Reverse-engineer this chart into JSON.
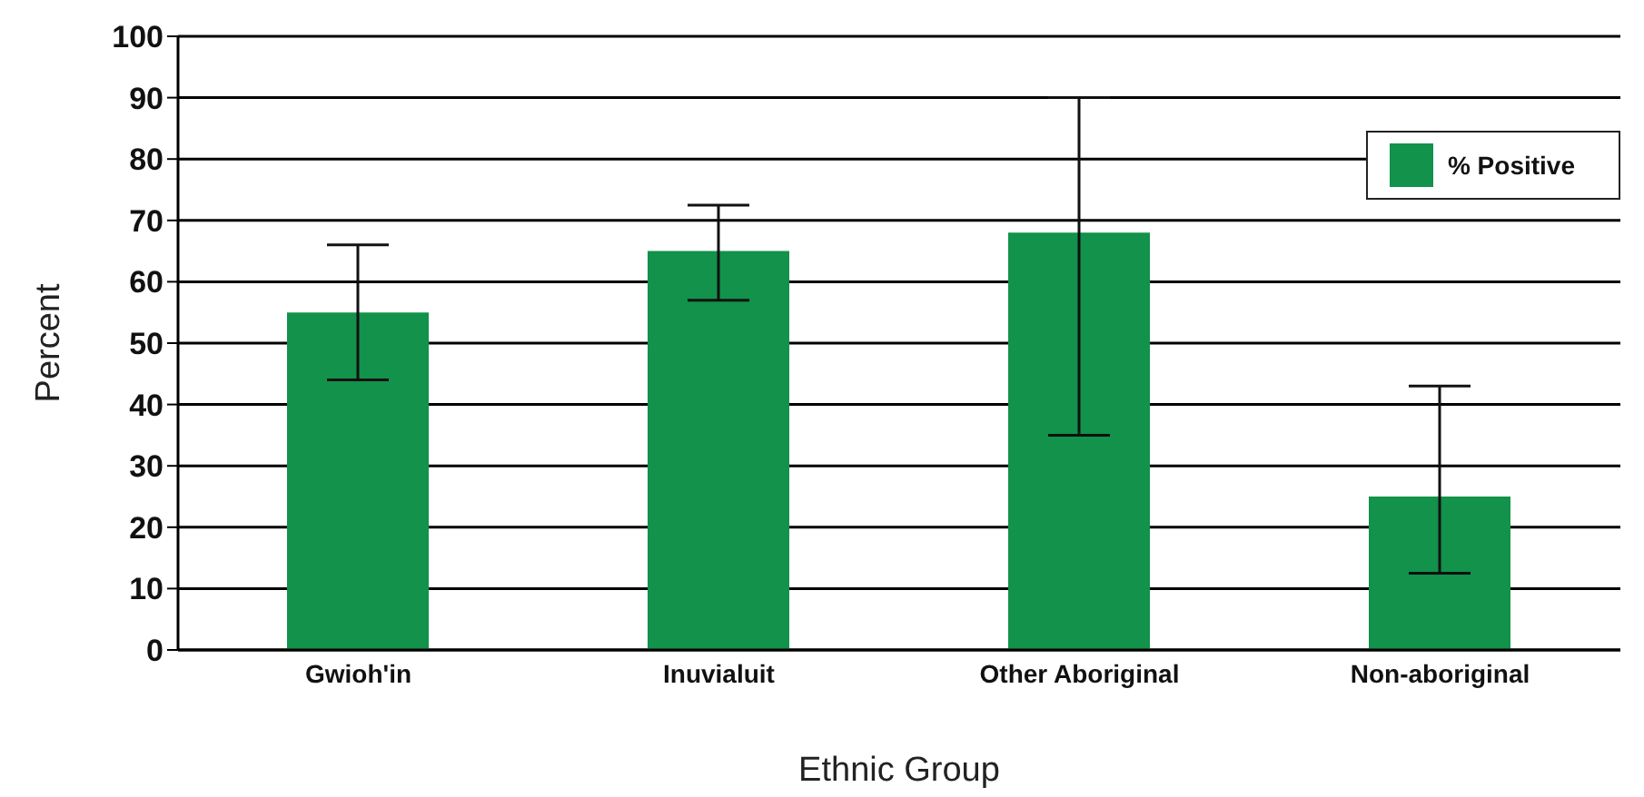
{
  "chart_data": {
    "type": "bar",
    "xlabel": "Ethnic Group",
    "ylabel": "Percent",
    "categories": [
      "Gwioh'in",
      "Inuvialuit",
      "Other Aboriginal",
      "Non-aboriginal"
    ],
    "series": [
      {
        "name": "% Positive",
        "color": "#12924a",
        "values": [
          55,
          65,
          68,
          25
        ],
        "errors": [
          [
            44,
            66
          ],
          [
            57,
            72.5
          ],
          [
            35,
            90
          ],
          [
            12.5,
            43
          ]
        ]
      }
    ],
    "ylim": [
      0,
      100
    ],
    "yticks": [
      0,
      10,
      20,
      30,
      40,
      50,
      60,
      70,
      80,
      90,
      100
    ],
    "grid": "y",
    "legend": "top right"
  }
}
